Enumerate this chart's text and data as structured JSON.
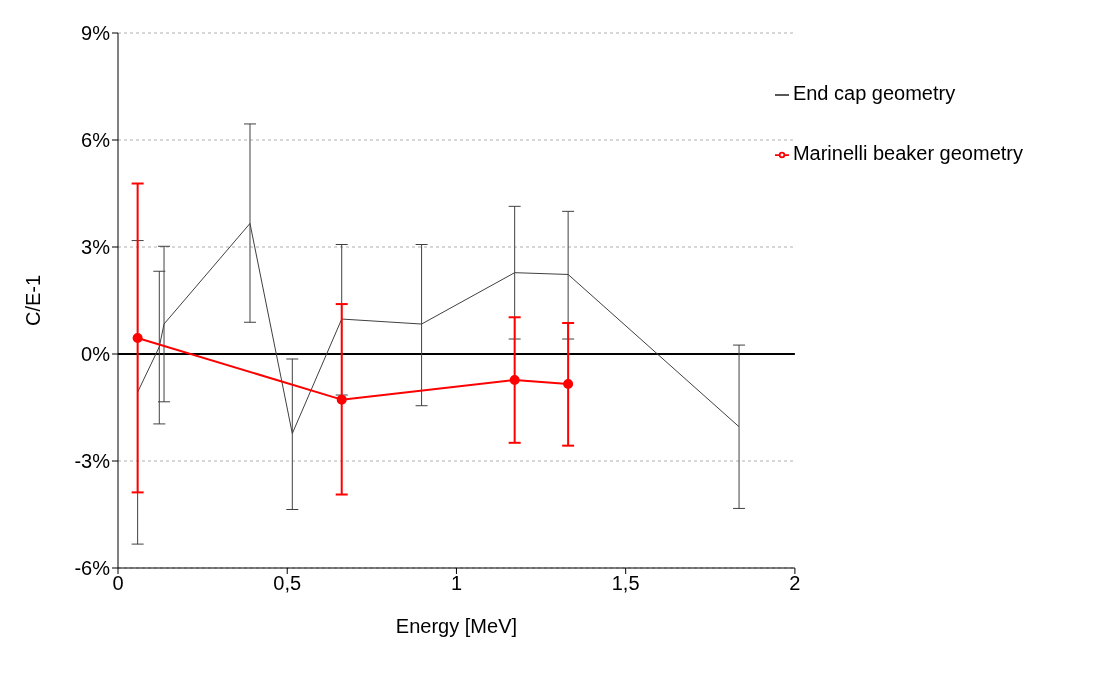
{
  "chart_data": {
    "type": "line",
    "xlabel": "Energy [MeV]",
    "ylabel": "C/E-1",
    "xlim": [
      0,
      2
    ],
    "xticks": [
      0,
      {
        "value": 0.5,
        "label": "0,5"
      },
      1,
      {
        "value": 1.5,
        "label": "1,5"
      },
      2
    ],
    "ylim": [
      -6,
      9
    ],
    "yticks": [
      {
        "value": -6,
        "label": "-6%"
      },
      {
        "value": -3,
        "label": "-3%"
      },
      {
        "value": 0,
        "label": "0%"
      },
      {
        "value": 3,
        "label": "3%"
      },
      {
        "value": 6,
        "label": "6%"
      },
      {
        "value": 9,
        "label": "9%"
      }
    ],
    "grid": "y",
    "legend": "top right",
    "ref_lines": [
      {
        "axis": "y",
        "value": 0,
        "color": "#000000"
      }
    ],
    "series": [
      {
        "name": "End cap geometry",
        "color": "#404040",
        "marker": "none",
        "x": [
          0.058,
          0.122,
          0.136,
          0.39,
          0.515,
          0.661,
          0.897,
          1.172,
          1.33,
          1.835
        ],
        "values": [
          -1.07,
          0.2,
          0.84,
          3.66,
          -2.23,
          0.98,
          0.84,
          2.28,
          2.23,
          -2.04
        ],
        "errors": [
          [
            -5.33,
            3.18
          ],
          [
            -1.96,
            2.32
          ],
          [
            -1.34,
            3.02
          ],
          [
            0.89,
            6.45
          ],
          [
            -4.36,
            -0.14
          ],
          [
            -1.15,
            3.07
          ],
          [
            -1.45,
            3.07
          ],
          [
            0.42,
            4.14
          ],
          [
            0.42,
            4.0
          ],
          [
            -4.33,
            0.25
          ]
        ]
      },
      {
        "name": "Marinelli beaker geometry",
        "color": "#ff0000",
        "marker": "circle",
        "x": [
          0.058,
          0.661,
          1.172,
          1.33
        ],
        "values": [
          0.45,
          -1.28,
          -0.73,
          -0.84
        ],
        "errors": [
          [
            -3.88,
            4.78
          ],
          [
            -3.94,
            1.4
          ],
          [
            -2.49,
            1.03
          ],
          [
            -2.57,
            0.87
          ]
        ]
      }
    ]
  }
}
